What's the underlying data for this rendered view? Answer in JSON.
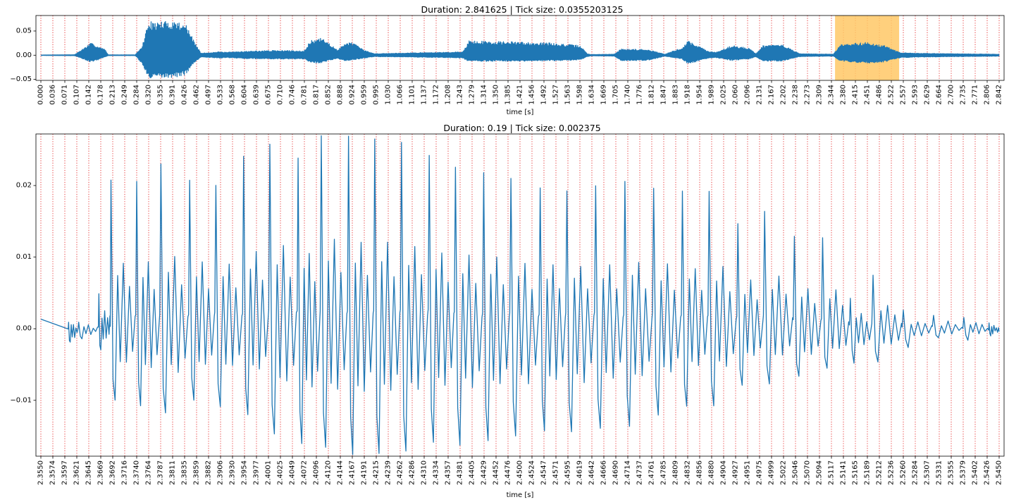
{
  "chart_data": [
    {
      "type": "line",
      "title": "Duration: 2.841625 | Tick size: 0.0355203125",
      "xlabel": "time [s]",
      "ylabel": "",
      "xlim": [
        0.0,
        2.8416
      ],
      "ylim": [
        -0.052,
        0.082
      ],
      "yticks": [
        0.05,
        0.0,
        -0.05
      ],
      "ytick_labels": [
        "0.05",
        "0.00",
        "−0.05"
      ],
      "xtick_step": 0.0355203125,
      "xtick_labels": [
        "0.000",
        "0.036",
        "0.071",
        "0.107",
        "0.142",
        "0.178",
        "0.213",
        "0.249",
        "0.284",
        "0.320",
        "0.355",
        "0.391",
        "0.426",
        "0.462",
        "0.497",
        "0.533",
        "0.568",
        "0.604",
        "0.639",
        "0.675",
        "0.710",
        "0.746",
        "0.781",
        "0.817",
        "0.852",
        "0.888",
        "0.924",
        "0.959",
        "0.995",
        "1.030",
        "1.066",
        "1.101",
        "1.137",
        "1.172",
        "1.208",
        "1.243",
        "1.279",
        "1.314",
        "1.350",
        "1.385",
        "1.421",
        "1.456",
        "1.492",
        "1.527",
        "1.563",
        "1.598",
        "1.634",
        "1.669",
        "1.705",
        "1.740",
        "1.776",
        "1.812",
        "1.847",
        "1.883",
        "1.918",
        "1.954",
        "1.989",
        "2.025",
        "2.060",
        "2.096",
        "2.131",
        "2.167",
        "2.202",
        "2.238",
        "2.273",
        "2.309",
        "2.344",
        "2.380",
        "2.415",
        "2.451",
        "2.486",
        "2.522",
        "2.557",
        "2.593",
        "2.629",
        "2.664",
        "2.700",
        "2.735",
        "2.771",
        "2.806",
        "2.842"
      ],
      "grid": "vertical dotted red",
      "highlight_span": [
        2.355,
        2.545
      ],
      "highlight_color": "#ffc866",
      "line_color": "#1f77b4",
      "envelope": {
        "x": [
          0.0,
          0.1,
          0.148,
          0.16,
          0.19,
          0.2,
          0.28,
          0.3,
          0.32,
          0.33,
          0.36,
          0.4,
          0.43,
          0.45,
          0.475,
          0.53,
          0.55,
          0.6,
          0.7,
          0.78,
          0.8,
          0.83,
          0.85,
          0.88,
          0.9,
          0.92,
          0.96,
          0.99,
          1.1,
          1.2,
          1.25,
          1.27,
          1.5,
          1.6,
          1.62,
          1.63,
          1.65,
          1.7,
          1.72,
          1.8,
          1.85,
          1.9,
          1.92,
          1.98,
          2.0,
          2.05,
          2.1,
          2.12,
          2.14,
          2.2,
          2.25,
          2.35,
          2.37,
          2.45,
          2.5,
          2.55,
          2.6,
          2.842
        ],
        "top": [
          0.0005,
          0.001,
          0.025,
          0.022,
          0.012,
          0.0008,
          0.0008,
          0.018,
          0.073,
          0.068,
          0.07,
          0.071,
          0.065,
          0.035,
          0.004,
          0.007,
          0.006,
          0.008,
          0.01,
          0.009,
          0.03,
          0.035,
          0.028,
          0.01,
          0.025,
          0.028,
          0.01,
          0.003,
          0.005,
          0.006,
          0.007,
          0.03,
          0.026,
          0.02,
          0.003,
          0.0015,
          0.0015,
          0.002,
          0.013,
          0.012,
          0.002,
          0.015,
          0.03,
          0.008,
          0.006,
          0.02,
          0.015,
          0.003,
          0.02,
          0.022,
          0.003,
          0.002,
          0.022,
          0.027,
          0.02,
          0.005,
          0.004,
          0.002
        ],
        "bottom": [
          -0.0005,
          -0.001,
          -0.014,
          -0.012,
          -0.004,
          -0.0008,
          -0.0008,
          -0.018,
          -0.05,
          -0.048,
          -0.047,
          -0.046,
          -0.04,
          -0.02,
          -0.004,
          -0.006,
          -0.005,
          -0.007,
          -0.008,
          -0.008,
          -0.015,
          -0.017,
          -0.012,
          -0.007,
          -0.012,
          -0.01,
          -0.006,
          -0.003,
          -0.004,
          -0.005,
          -0.006,
          -0.013,
          -0.012,
          -0.01,
          -0.003,
          -0.0015,
          -0.0015,
          -0.002,
          -0.012,
          -0.011,
          -0.002,
          -0.008,
          -0.018,
          -0.006,
          -0.005,
          -0.011,
          -0.008,
          -0.003,
          -0.013,
          -0.012,
          -0.003,
          -0.002,
          -0.012,
          -0.017,
          -0.014,
          -0.005,
          -0.004,
          -0.002
        ]
      }
    },
    {
      "type": "line",
      "title": "Duration: 0.19 | Tick size: 0.002375",
      "xlabel": "time [s]",
      "ylabel": "",
      "xlim": [
        2.355,
        2.545
      ],
      "ylim": [
        -0.0178,
        0.0272
      ],
      "yticks": [
        0.02,
        0.01,
        0.0,
        -0.01
      ],
      "ytick_labels": [
        "0.02",
        "0.01",
        "0.00",
        "−0.01"
      ],
      "xtick_step": 0.002375,
      "xtick_labels": [
        "2.3550",
        "2.3574",
        "2.3597",
        "2.3621",
        "2.3645",
        "2.3669",
        "2.3692",
        "2.3716",
        "2.3740",
        "2.3764",
        "2.3787",
        "2.3811",
        "2.3835",
        "2.3859",
        "2.3882",
        "2.3906",
        "2.3930",
        "2.3954",
        "2.3977",
        "2.4001",
        "2.4025",
        "2.4049",
        "2.4072",
        "2.4096",
        "2.4120",
        "2.4144",
        "2.4167",
        "2.4191",
        "2.4215",
        "2.4239",
        "2.4262",
        "2.4286",
        "2.4310",
        "2.4334",
        "2.4357",
        "2.4381",
        "2.4405",
        "2.4429",
        "2.4452",
        "2.4476",
        "2.4500",
        "2.4524",
        "2.4547",
        "2.4571",
        "2.4595",
        "2.4619",
        "2.4642",
        "2.4666",
        "2.4690",
        "2.4714",
        "2.4737",
        "2.4761",
        "2.4785",
        "2.4809",
        "2.4832",
        "2.4856",
        "2.4880",
        "2.4904",
        "2.4927",
        "2.4951",
        "2.4975",
        "2.4999",
        "2.5022",
        "2.5046",
        "2.5070",
        "2.5094",
        "2.5117",
        "2.5141",
        "2.5165",
        "2.5189",
        "2.5212",
        "2.5236",
        "2.5260",
        "2.5284",
        "2.5307",
        "2.5331",
        "2.5355",
        "2.5379",
        "2.5402",
        "2.5426",
        "2.5450"
      ],
      "grid": "vertical dotted red",
      "line_color": "#1f77b4",
      "peaks": [
        {
          "x": 2.3605,
          "hi": 0.001,
          "lo": -0.002
        },
        {
          "x": 2.3625,
          "hi": 0.001,
          "lo": -0.0015
        },
        {
          "x": 2.3665,
          "hi": 0.005,
          "lo": -0.003
        },
        {
          "x": 2.3689,
          "hi": 0.0206,
          "lo": -0.0098
        },
        {
          "x": 2.374,
          "hi": 0.0206,
          "lo": -0.0108
        },
        {
          "x": 2.3788,
          "hi": 0.0229,
          "lo": -0.0118
        },
        {
          "x": 2.3845,
          "hi": 0.0206,
          "lo": -0.0098
        },
        {
          "x": 2.3897,
          "hi": 0.0203,
          "lo": -0.0108
        },
        {
          "x": 2.3952,
          "hi": 0.024,
          "lo": -0.0118
        },
        {
          "x": 2.4004,
          "hi": 0.0258,
          "lo": -0.0148
        },
        {
          "x": 2.406,
          "hi": 0.0238,
          "lo": -0.0162
        },
        {
          "x": 2.4106,
          "hi": 0.0272,
          "lo": -0.0168
        },
        {
          "x": 2.416,
          "hi": 0.0268,
          "lo": -0.0175
        },
        {
          "x": 2.4212,
          "hi": 0.0265,
          "lo": -0.0175
        },
        {
          "x": 2.4265,
          "hi": 0.026,
          "lo": -0.0172
        },
        {
          "x": 2.432,
          "hi": 0.024,
          "lo": -0.0158
        },
        {
          "x": 2.4372,
          "hi": 0.0228,
          "lo": -0.016
        },
        {
          "x": 2.4428,
          "hi": 0.022,
          "lo": -0.0155
        },
        {
          "x": 2.4482,
          "hi": 0.0207,
          "lo": -0.0148
        },
        {
          "x": 2.454,
          "hi": 0.0196,
          "lo": -0.0145
        },
        {
          "x": 2.4593,
          "hi": 0.0195,
          "lo": -0.0145
        },
        {
          "x": 2.465,
          "hi": 0.02,
          "lo": -0.0138
        },
        {
          "x": 2.4708,
          "hi": 0.0205,
          "lo": -0.0135
        },
        {
          "x": 2.4765,
          "hi": 0.0195,
          "lo": -0.0118
        },
        {
          "x": 2.4822,
          "hi": 0.019,
          "lo": -0.0108
        },
        {
          "x": 2.4875,
          "hi": 0.019,
          "lo": -0.0105
        },
        {
          "x": 2.4932,
          "hi": 0.0145,
          "lo": -0.008
        },
        {
          "x": 2.4985,
          "hi": 0.0165,
          "lo": -0.0075
        },
        {
          "x": 2.5044,
          "hi": 0.013,
          "lo": -0.0068
        },
        {
          "x": 2.51,
          "hi": 0.0125,
          "lo": -0.0058
        },
        {
          "x": 2.5155,
          "hi": 0.0045,
          "lo": -0.0048
        },
        {
          "x": 2.52,
          "hi": 0.0075,
          "lo": -0.0045
        },
        {
          "x": 2.526,
          "hi": 0.0025,
          "lo": -0.0025
        },
        {
          "x": 2.532,
          "hi": 0.002,
          "lo": -0.0015
        },
        {
          "x": 2.538,
          "hi": 0.0015,
          "lo": -0.0015
        },
        {
          "x": 2.543,
          "hi": 0.001,
          "lo": -0.001
        }
      ]
    }
  ]
}
